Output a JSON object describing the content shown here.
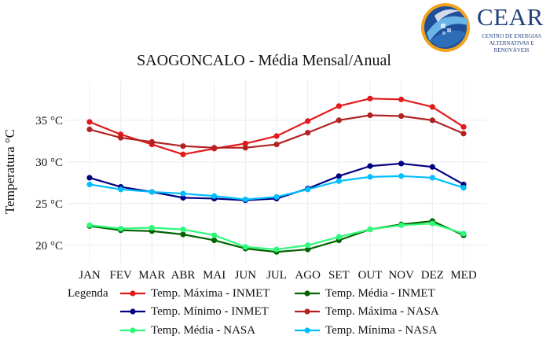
{
  "logo": {
    "word": "CEAR",
    "subtitle_line1": "CENTRO DE ENERGIAS",
    "subtitle_line2": "ALTERNATIVAS E RENOVÁVEIS"
  },
  "legend": {
    "title": "Legenda"
  },
  "chart_data": {
    "type": "line",
    "title": "SAOGONCALO - Média Mensal/Anual",
    "xlabel": "",
    "ylabel": "Temperatura °C",
    "categories": [
      "JAN",
      "FEV",
      "MAR",
      "ABR",
      "MAI",
      "JUN",
      "JUL",
      "AGO",
      "SET",
      "OUT",
      "NOV",
      "DEZ",
      "MED"
    ],
    "yticks": [
      "20 °C",
      "25 °C",
      "30 °C",
      "35 °C"
    ],
    "ytick_values": [
      20,
      25,
      30,
      35
    ],
    "ylim": [
      17.9,
      39.8
    ],
    "grid": true,
    "legend_position": "bottom",
    "series": [
      {
        "name": "Temp. Máxima - INMET",
        "color": "#e31a1c",
        "values": [
          34.8,
          33.3,
          32.1,
          30.9,
          31.6,
          32.2,
          33.1,
          34.9,
          36.7,
          37.6,
          37.5,
          36.6,
          34.2
        ]
      },
      {
        "name": "Temp. Média - INMET",
        "color": "#006400",
        "values": [
          22.3,
          21.8,
          21.7,
          21.3,
          20.6,
          19.6,
          19.2,
          19.5,
          20.6,
          21.9,
          22.5,
          22.9,
          21.2
        ]
      },
      {
        "name": "Temp. Mínimo - INMET",
        "color": "#000080",
        "values": [
          28.1,
          27.0,
          26.4,
          25.7,
          25.6,
          25.4,
          25.6,
          26.8,
          28.3,
          29.5,
          29.8,
          29.4,
          27.3
        ]
      },
      {
        "name": "Temp. Máxima - NASA",
        "color": "#b22222",
        "values": [
          33.9,
          32.9,
          32.4,
          31.9,
          31.7,
          31.7,
          32.1,
          33.5,
          35.0,
          35.6,
          35.5,
          35.0,
          33.4
        ]
      },
      {
        "name": "Temp. Média - NASA",
        "color": "#2efa7a",
        "values": [
          22.4,
          22.0,
          22.1,
          21.9,
          21.2,
          19.8,
          19.5,
          20.0,
          21.0,
          21.9,
          22.4,
          22.6,
          21.4
        ]
      },
      {
        "name": "Temp. Mínima - NASA",
        "color": "#00bfff",
        "values": [
          27.3,
          26.7,
          26.4,
          26.2,
          25.9,
          25.5,
          25.8,
          26.7,
          27.7,
          28.2,
          28.3,
          28.1,
          26.9
        ]
      }
    ]
  }
}
